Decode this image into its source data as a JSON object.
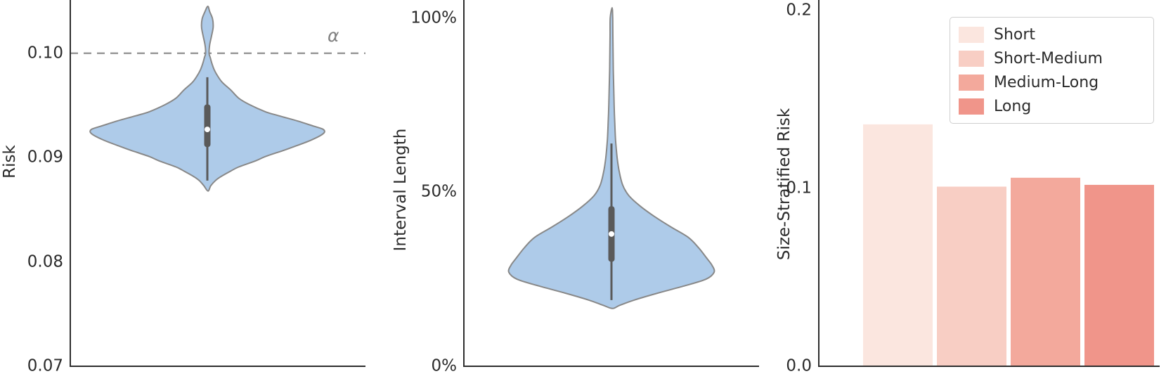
{
  "figure": {
    "background": "#ffffff",
    "text_color": "#2b2b2b",
    "spine_color": "#2e2e2e"
  },
  "chart_data": [
    {
      "type": "violin",
      "id": "risk",
      "ylabel": "Risk",
      "ylim": [
        0.07,
        0.1047
      ],
      "yticks": [
        {
          "value": 0.07,
          "label": "0.07"
        },
        {
          "value": 0.08,
          "label": "0.08"
        },
        {
          "value": 0.09,
          "label": "0.09"
        },
        {
          "value": 0.1,
          "label": "0.10"
        }
      ],
      "reference_line": {
        "value": 0.1,
        "label": "α",
        "style": "dashed",
        "color": "#9b9b9b"
      },
      "fill_color": "#aecbe9",
      "outline_color": "#888888",
      "box_color": "#5a5a5a",
      "median_color": "#ffffff",
      "stats": {
        "median": 0.0927,
        "q1": 0.091,
        "q3": 0.0951,
        "whisker_low": 0.0878,
        "whisker_high": 0.0977
      },
      "density": [
        [
          0.1045,
          0.004
        ],
        [
          0.104,
          0.02
        ],
        [
          0.1033,
          0.045
        ],
        [
          0.1025,
          0.05
        ],
        [
          0.1016,
          0.035
        ],
        [
          0.1008,
          0.02
        ],
        [
          0.1,
          0.015
        ],
        [
          0.0996,
          0.025
        ],
        [
          0.099,
          0.04
        ],
        [
          0.0984,
          0.06
        ],
        [
          0.0978,
          0.09
        ],
        [
          0.0972,
          0.13
        ],
        [
          0.0965,
          0.2
        ],
        [
          0.0957,
          0.27
        ],
        [
          0.0951,
          0.36
        ],
        [
          0.0944,
          0.5
        ],
        [
          0.094,
          0.62
        ],
        [
          0.0935,
          0.78
        ],
        [
          0.093,
          0.92
        ],
        [
          0.0927,
          1.0
        ],
        [
          0.0923,
          1.0
        ],
        [
          0.0917,
          0.9
        ],
        [
          0.0911,
          0.76
        ],
        [
          0.0907,
          0.66
        ],
        [
          0.0901,
          0.5
        ],
        [
          0.0897,
          0.42
        ],
        [
          0.0891,
          0.27
        ],
        [
          0.0887,
          0.2
        ],
        [
          0.0882,
          0.12
        ],
        [
          0.0878,
          0.07
        ],
        [
          0.0873,
          0.03
        ],
        [
          0.0868,
          0.006
        ]
      ]
    },
    {
      "type": "violin",
      "id": "interval-length",
      "ylabel": "Interval Length",
      "ylim": [
        0,
        104
      ],
      "yticks": [
        {
          "value": 0,
          "label": "0%"
        },
        {
          "value": 50,
          "label": "50%"
        },
        {
          "value": 100,
          "label": "100%"
        }
      ],
      "fill_color": "#aecbe9",
      "outline_color": "#888888",
      "box_color": "#5a5a5a",
      "median_color": "#ffffff",
      "stats": {
        "median": 38,
        "q1": 30,
        "q3": 46,
        "whisker_low": 19,
        "whisker_high": 64
      },
      "density": [
        [
          103,
          0.006
        ],
        [
          100,
          0.012
        ],
        [
          95,
          0.014
        ],
        [
          90,
          0.016
        ],
        [
          85,
          0.018
        ],
        [
          80,
          0.022
        ],
        [
          75,
          0.026
        ],
        [
          70,
          0.032
        ],
        [
          65,
          0.04
        ],
        [
          60,
          0.055
        ],
        [
          56,
          0.075
        ],
        [
          52,
          0.11
        ],
        [
          49,
          0.17
        ],
        [
          46,
          0.28
        ],
        [
          43,
          0.42
        ],
        [
          40,
          0.58
        ],
        [
          37,
          0.75
        ],
        [
          34,
          0.85
        ],
        [
          31,
          0.93
        ],
        [
          29,
          0.98
        ],
        [
          27,
          1.0
        ],
        [
          25,
          0.92
        ],
        [
          23,
          0.7
        ],
        [
          21,
          0.45
        ],
        [
          19,
          0.22
        ],
        [
          17.5,
          0.08
        ],
        [
          16.6,
          0.01
        ]
      ]
    },
    {
      "type": "bar",
      "id": "size-stratified-risk",
      "ylabel": "Size-Stratified Risk",
      "ylim": [
        0.0,
        0.2
      ],
      "yticks": [
        {
          "value": 0.0,
          "label": "0.0"
        },
        {
          "value": 0.1,
          "label": "0.1"
        },
        {
          "value": 0.2,
          "label": "0.2"
        }
      ],
      "categories": [
        "Short",
        "Short-Medium",
        "Medium-Long",
        "Long"
      ],
      "values": [
        0.136,
        0.101,
        0.106,
        0.102
      ],
      "colors": [
        "#fbe6df",
        "#f8cec4",
        "#f3a99c",
        "#f0958a"
      ],
      "legend": {
        "position": "upper right",
        "entries": [
          "Short",
          "Short-Medium",
          "Medium-Long",
          "Long"
        ]
      }
    }
  ]
}
